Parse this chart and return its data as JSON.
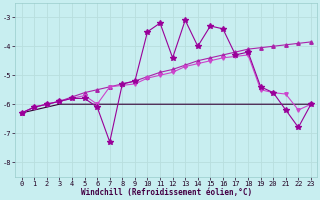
{
  "xlabel": "Windchill (Refroidissement éolien,°C)",
  "background_color": "#c8eef0",
  "grid_color": "#b8dede",
  "x": [
    0,
    1,
    2,
    3,
    4,
    5,
    6,
    7,
    8,
    9,
    10,
    11,
    12,
    13,
    14,
    15,
    16,
    17,
    18,
    19,
    20,
    21,
    22,
    23
  ],
  "line_flat": [
    -6.3,
    -6.2,
    -6.1,
    -6.0,
    -6.0,
    -6.0,
    -6.0,
    -6.0,
    -6.0,
    -6.0,
    -6.0,
    -6.0,
    -6.0,
    -6.0,
    -6.0,
    -6.0,
    -6.0,
    -6.0,
    -6.0,
    -6.0,
    -6.0,
    -6.0,
    -6.0,
    -6.0
  ],
  "line_diag": [
    -6.3,
    -6.1,
    -6.0,
    -5.9,
    -5.75,
    -5.6,
    -5.5,
    -5.4,
    -5.3,
    -5.2,
    -5.05,
    -4.9,
    -4.8,
    -4.65,
    -4.5,
    -4.4,
    -4.3,
    -4.2,
    -4.1,
    -4.05,
    -4.0,
    -3.95,
    -3.9,
    -3.85
  ],
  "line_mid": [
    -6.3,
    -6.1,
    -6.0,
    -5.9,
    -5.8,
    -5.7,
    -6.0,
    -5.4,
    -5.35,
    -5.3,
    -5.1,
    -5.0,
    -4.9,
    -4.7,
    -4.6,
    -4.5,
    -4.4,
    -4.35,
    -4.3,
    -5.5,
    -5.6,
    -5.65,
    -6.2,
    -6.0
  ],
  "line_wild": [
    -6.3,
    -6.1,
    -6.0,
    -5.9,
    -5.8,
    -5.8,
    -6.1,
    -7.3,
    -5.3,
    -5.2,
    -3.5,
    -3.2,
    -4.4,
    -3.1,
    -4.0,
    -3.3,
    -3.4,
    -4.3,
    -4.2,
    -5.4,
    -5.6,
    -6.2,
    -6.8,
    -6.0
  ],
  "ylim": [
    -8.5,
    -2.5
  ],
  "xlim": [
    -0.5,
    23.5
  ],
  "yticks": [
    -8,
    -7,
    -6,
    -5,
    -4,
    -3
  ],
  "xticks": [
    0,
    1,
    2,
    3,
    4,
    5,
    6,
    7,
    8,
    9,
    10,
    11,
    12,
    13,
    14,
    15,
    16,
    17,
    18,
    19,
    20,
    21,
    22,
    23
  ],
  "color_flat": "#330033",
  "color_diag": "#aa22aa",
  "color_mid": "#cc44cc",
  "color_wild": "#990099"
}
